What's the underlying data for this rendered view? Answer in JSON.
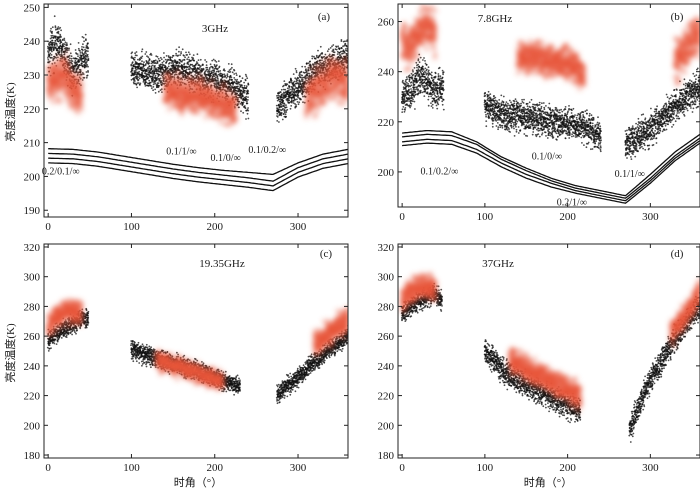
{
  "figure": {
    "xlabel": "时角（°）",
    "ylabel": "亮度温度(K)"
  },
  "chart_data": [
    {
      "type": "scatter",
      "panel_label": "(a)",
      "title": "3GHz",
      "xlabel": "",
      "ylabel": "亮度温度(K)",
      "xlim": [
        -5,
        360
      ],
      "ylim": [
        188,
        251
      ],
      "x_ticks": [
        0,
        100,
        200,
        300
      ],
      "y_ticks": [
        190,
        200,
        210,
        220,
        230,
        240,
        250
      ],
      "series": [
        {
          "kind": "observed-black",
          "segments": [
            {
              "x": [
                0,
                10,
                20,
                30,
                40,
                48
              ],
              "y": [
                236,
                240,
                236,
                231,
                234,
                236
              ],
              "noise": 3
            },
            {
              "x": [
                100,
                130,
                160,
                190,
                220,
                240
              ],
              "y": [
                232,
                230,
                232,
                229,
                227,
                223
              ],
              "noise": 2.5
            },
            {
              "x": [
                275,
                290,
                305,
                320,
                340,
                360
              ],
              "y": [
                220,
                224,
                227,
                231,
                233,
                236
              ],
              "noise": 2.5
            }
          ]
        },
        {
          "kind": "simulated-red",
          "segments": [
            {
              "x": [
                0,
                10,
                20,
                30,
                40
              ],
              "y": [
                228,
                229,
                230,
                225,
                224
              ],
              "noise": 3
            },
            {
              "x": [
                140,
                160,
                180,
                200,
                225
              ],
              "y": [
                226,
                224,
                224,
                222,
                220
              ],
              "noise": 2.5
            },
            {
              "x": [
                310,
                325,
                340,
                360
              ],
              "y": [
                224,
                226,
                229,
                228
              ],
              "noise": 3
            }
          ]
        }
      ],
      "model_curves": [
        {
          "name": "0.1/1/∞",
          "x": [
            0,
            30,
            60,
            90,
            120,
            150,
            180,
            210,
            240,
            270,
            300,
            330,
            360
          ],
          "y": [
            208.2,
            208.0,
            207.2,
            206.0,
            204.8,
            203.6,
            202.6,
            201.8,
            201.2,
            200.6,
            204.0,
            206.6,
            208.0
          ]
        },
        {
          "name": "0.1/0/∞",
          "x": [
            0,
            30,
            60,
            90,
            120,
            150,
            180,
            210,
            240,
            270,
            300,
            330,
            360
          ],
          "y": [
            206.8,
            206.6,
            205.8,
            204.6,
            203.4,
            202.2,
            201.2,
            200.4,
            199.6,
            198.6,
            202.6,
            205.2,
            206.6
          ]
        },
        {
          "name": "0.1/0.2/∞",
          "x": [
            0,
            30,
            60,
            90,
            120,
            150,
            180,
            210,
            240,
            270,
            300,
            330,
            360
          ],
          "y": [
            205.4,
            205.2,
            204.4,
            203.2,
            202.0,
            200.8,
            199.8,
            199.0,
            198.2,
            197.2,
            201.2,
            203.8,
            205.2
          ]
        },
        {
          "name": "0.2/0.1/∞",
          "x": [
            0,
            30,
            60,
            90,
            120,
            150,
            180,
            210,
            240,
            270,
            300,
            330,
            360
          ],
          "y": [
            204.0,
            203.8,
            203.0,
            201.8,
            200.6,
            199.4,
            198.4,
            197.6,
            196.8,
            195.8,
            199.8,
            202.4,
            203.8
          ]
        }
      ],
      "curve_labels": [
        {
          "text": "0.1/1/∞",
          "x": 160,
          "y": 206.5
        },
        {
          "text": "0.1/0/∞",
          "x": 213,
          "y": 204.5
        },
        {
          "text": "0.1/0.2/∞",
          "x": 263,
          "y": 207.0
        },
        {
          "text": "0.2/0.1/∞",
          "x": 15,
          "y": 200.5
        }
      ]
    },
    {
      "type": "scatter",
      "panel_label": "(b)",
      "title": "7.8GHz",
      "xlabel": "",
      "ylabel": "",
      "xlim": [
        -5,
        360
      ],
      "ylim": [
        186,
        267
      ],
      "x_ticks": [
        0,
        100,
        200,
        300
      ],
      "y_ticks": [
        200,
        220,
        240,
        260
      ],
      "series": [
        {
          "kind": "observed-black",
          "segments": [
            {
              "x": [
                0,
                10,
                20,
                30,
                40,
                50
              ],
              "y": [
                229,
                232,
                238,
                236,
                232,
                234
              ],
              "noise": 3.5
            },
            {
              "x": [
                100,
                125,
                150,
                175,
                200,
                220,
                240
              ],
              "y": [
                227,
                223,
                222,
                220,
                219,
                218,
                214
              ],
              "noise": 3
            },
            {
              "x": [
                270,
                290,
                310,
                330,
                350,
                360
              ],
              "y": [
                210,
                215,
                220,
                226,
                232,
                234
              ],
              "noise": 3
            }
          ]
        },
        {
          "kind": "simulated-red",
          "segments": [
            {
              "x": [
                0,
                10,
                20,
                30,
                40
              ],
              "y": [
                252,
                250,
                256,
                258,
                255
              ],
              "noise": 4
            },
            {
              "x": [
                140,
                160,
                180,
                200,
                220
              ],
              "y": [
                246,
                246,
                244,
                243,
                239
              ],
              "noise": 3
            },
            {
              "x": [
                330,
                345,
                360
              ],
              "y": [
                243,
                250,
                256
              ],
              "noise": 4
            }
          ]
        }
      ],
      "model_curves": [
        {
          "name": "0.1/0/∞",
          "x": [
            0,
            30,
            60,
            90,
            120,
            150,
            180,
            210,
            240,
            270,
            300,
            330,
            360
          ],
          "y": [
            215.5,
            216.5,
            216.0,
            212.0,
            206.0,
            201.5,
            197.5,
            194.5,
            192.5,
            190.5,
            199.0,
            208.0,
            215.0
          ]
        },
        {
          "name": "0.1/1/∞",
          "x": [
            0,
            30,
            60,
            90,
            120,
            150,
            180,
            210,
            240,
            270,
            300,
            330,
            360
          ],
          "y": [
            214.0,
            215.0,
            214.5,
            211.0,
            205.0,
            200.5,
            196.5,
            193.5,
            191.5,
            189.5,
            197.5,
            206.5,
            213.5
          ]
        },
        {
          "name": "0.1/0.2/∞",
          "x": [
            0,
            30,
            60,
            90,
            120,
            150,
            180,
            210,
            240,
            270,
            300,
            330,
            360
          ],
          "y": [
            212.0,
            213.0,
            212.5,
            209.0,
            203.5,
            199.0,
            195.5,
            192.5,
            190.5,
            188.5,
            196.5,
            205.5,
            212.5
          ]
        },
        {
          "name": "0.2/1/∞",
          "x": [
            0,
            30,
            60,
            90,
            120,
            150,
            180,
            210,
            240,
            270,
            300,
            330,
            360
          ],
          "y": [
            210.5,
            211.5,
            211.0,
            207.5,
            202.0,
            197.5,
            194.0,
            191.5,
            189.5,
            187.5,
            195.5,
            204.5,
            211.5
          ]
        }
      ],
      "curve_labels": [
        {
          "text": "0.1/0/∞",
          "x": 175,
          "y": 205.0
        },
        {
          "text": "0.1/1/∞",
          "x": 275,
          "y": 198.0
        },
        {
          "text": "0.1/0.2/∞",
          "x": 45,
          "y": 199.0
        },
        {
          "text": "0.2/1/∞",
          "x": 205,
          "y": 186.5
        }
      ]
    },
    {
      "type": "scatter",
      "panel_label": "(c)",
      "title": "19.35GHz",
      "xlabel": "时角（°）",
      "ylabel": "亮度温度(K)",
      "xlim": [
        -5,
        360
      ],
      "ylim": [
        178,
        322
      ],
      "x_ticks": [
        0,
        100,
        200,
        300
      ],
      "y_ticks": [
        180,
        200,
        220,
        240,
        260,
        280,
        300,
        320
      ],
      "series": [
        {
          "kind": "observed-black",
          "segments": [
            {
              "x": [
                0,
                10,
                20,
                30,
                40,
                48
              ],
              "y": [
                257,
                262,
                265,
                268,
                272,
                272
              ],
              "noise": 3
            },
            {
              "x": [
                100,
                130,
                160,
                190,
                210,
                230
              ],
              "y": [
                251,
                245,
                240,
                234,
                230,
                226
              ],
              "noise": 3
            },
            {
              "x": [
                275,
                295,
                315,
                335,
                360
              ],
              "y": [
                220,
                230,
                240,
                250,
                260
              ],
              "noise": 3
            }
          ]
        },
        {
          "kind": "simulated-red",
          "segments": [
            {
              "x": [
                0,
                10,
                20,
                30,
                40
              ],
              "y": [
                268,
                272,
                276,
                277,
                275
              ],
              "noise": 4
            },
            {
              "x": [
                130,
                150,
                170,
                190,
                210
              ],
              "y": [
                244,
                240,
                237,
                233,
                229
              ],
              "noise": 3
            },
            {
              "x": [
                320,
                335,
                350,
                360
              ],
              "y": [
                255,
                262,
                267,
                270
              ],
              "noise": 4
            }
          ]
        }
      ],
      "model_curves": [],
      "curve_labels": []
    },
    {
      "type": "scatter",
      "panel_label": "(d)",
      "title": "37GHz",
      "xlabel": "时角（°）",
      "ylabel": "",
      "xlim": [
        -5,
        360
      ],
      "ylim": [
        178,
        322
      ],
      "x_ticks": [
        0,
        100,
        200,
        300
      ],
      "y_ticks": [
        180,
        200,
        220,
        240,
        260,
        280,
        300,
        320
      ],
      "series": [
        {
          "kind": "observed-black",
          "segments": [
            {
              "x": [
                0,
                10,
                20,
                30,
                40,
                48
              ],
              "y": [
                274,
                280,
                283,
                286,
                288,
                284
              ],
              "noise": 3
            },
            {
              "x": [
                100,
                125,
                150,
                175,
                200,
                215
              ],
              "y": [
                250,
                235,
                227,
                220,
                213,
                210
              ],
              "noise": 4
            },
            {
              "x": [
                275,
                295,
                315,
                335,
                360
              ],
              "y": [
                197,
                225,
                245,
                262,
                280
              ],
              "noise": 4
            }
          ]
        },
        {
          "kind": "simulated-red",
          "segments": [
            {
              "x": [
                0,
                10,
                20,
                30,
                40
              ],
              "y": [
                285,
                290,
                292,
                294,
                291
              ],
              "noise": 4
            },
            {
              "x": [
                130,
                150,
                170,
                190,
                215
              ],
              "y": [
                243,
                238,
                232,
                226,
                220
              ],
              "noise": 4
            },
            {
              "x": [
                325,
                340,
                350,
                360
              ],
              "y": [
                262,
                272,
                280,
                290
              ],
              "noise": 4
            }
          ]
        }
      ],
      "model_curves": [],
      "curve_labels": []
    }
  ]
}
